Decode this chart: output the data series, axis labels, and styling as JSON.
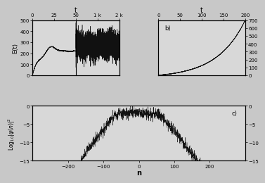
{
  "panel_a": {
    "label": "a)",
    "ylabel": "E(t)",
    "ylim": [
      0,
      500
    ],
    "yticks": [
      0,
      100,
      200,
      300,
      400,
      500
    ],
    "top_xtick_pos": [
      0,
      25,
      50,
      75,
      100
    ],
    "top_xtick_labels": [
      "0",
      "25",
      "50",
      "1 k",
      "2 k"
    ],
    "vline_x": 50,
    "seed1": 42,
    "seed2": 123
  },
  "panel_b": {
    "label": "b)",
    "top_xticks": [
      0,
      50,
      100,
      150,
      200
    ],
    "ylim": [
      0,
      700
    ],
    "yticks_right": [
      0,
      100,
      200,
      300,
      400,
      500,
      600,
      700
    ],
    "xmax": 200,
    "seed": 77
  },
  "panel_c": {
    "label": "c)",
    "xlabel": "n",
    "ylabel": "Log$_{10}|\\psi(n)|^2$",
    "xlim": [
      -300,
      300
    ],
    "ylim": [
      -15,
      0
    ],
    "xticks": [
      -200,
      -100,
      0,
      100,
      200
    ],
    "yticks": [
      0,
      -5,
      -10,
      -15
    ],
    "seed": 999
  },
  "fig_bgcolor": "#f0f0f0",
  "axes_bgcolor": "#f0f0f0",
  "linecolor": "#111111",
  "linewidth": 0.5
}
